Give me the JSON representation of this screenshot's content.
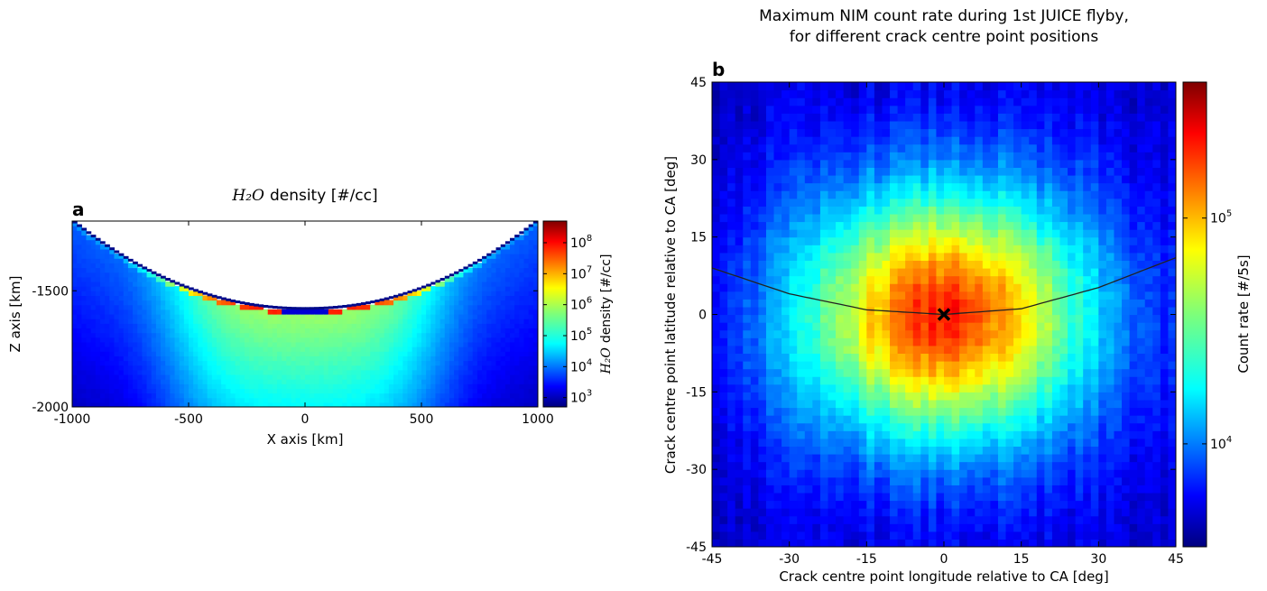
{
  "chart_data": [
    {
      "panel": "a",
      "type": "heatmap",
      "title_math": "H₂O",
      "title_rest": "density [#/cc]",
      "xlabel": "X axis [km]",
      "ylabel": "Z axis [km]",
      "xlim": [
        -1000,
        1000
      ],
      "ylim": [
        -2000,
        -1200
      ],
      "xticks": [
        "-1000",
        "-500",
        "0",
        "500",
        "1000"
      ],
      "xtick_values": [
        -1000,
        -500,
        0,
        500,
        1000
      ],
      "yticks": [
        "-1500",
        "-2000"
      ],
      "ytick_values": [
        -1500,
        -2000
      ],
      "surface": "moon surface, arc spanning x = -1000..1000 km, lowest z about -1580 km at x = 0",
      "plume_peak": "near x = 0, z = -1580 km, density above 10^7 #/cc",
      "colorbar": {
        "label_math": "H₂O",
        "label_rest": "density [#/cc]",
        "scale": "log",
        "range": [
          500,
          500000000
        ],
        "ticks": [
          {
            "base": "10",
            "exp": "3",
            "value": 1000
          },
          {
            "base": "10",
            "exp": "4",
            "value": 10000
          },
          {
            "base": "10",
            "exp": "5",
            "value": 100000
          },
          {
            "base": "10",
            "exp": "6",
            "value": 1000000
          },
          {
            "base": "10",
            "exp": "7",
            "value": 10000000
          },
          {
            "base": "10",
            "exp": "8",
            "value": 100000000
          }
        ]
      }
    },
    {
      "panel": "b",
      "type": "heatmap",
      "title": "Maximum NIM count rate during 1st JUICE flyby,",
      "title_line2": "for different crack centre point positions",
      "xlabel": "Crack centre point longitude relative to CA [deg]",
      "ylabel": "Crack centre point latitude relative to CA [deg]",
      "xlim": [
        -45,
        45
      ],
      "ylim": [
        -45,
        45
      ],
      "xticks": [
        "-45",
        "-30",
        "-15",
        "0",
        "15",
        "30",
        "45"
      ],
      "xtick_values": [
        -45,
        -30,
        -15,
        0,
        15,
        30,
        45
      ],
      "yticks": [
        "45",
        "30",
        "15",
        "0",
        "-15",
        "-30",
        "-45"
      ],
      "ytick_values": [
        45,
        30,
        15,
        0,
        -15,
        -30,
        -45
      ],
      "peak_count_rate": 200000,
      "peak_location": [
        0,
        0
      ],
      "marker": {
        "symbol": "x",
        "lon": 0,
        "lat": 0
      },
      "trajectory": {
        "lon": [
          -45,
          -30,
          -15,
          0,
          15,
          30,
          45
        ],
        "lat": [
          9,
          4,
          0.9,
          0,
          1.1,
          5.2,
          11
        ]
      },
      "colorbar": {
        "label": "Count rate [#/5s]",
        "scale": "log",
        "range": [
          3500,
          400000
        ],
        "ticks": [
          {
            "base": "10",
            "exp": "4",
            "value": 10000
          },
          {
            "base": "10",
            "exp": "5",
            "value": 100000
          }
        ]
      }
    }
  ],
  "panel_labels": {
    "a": "a",
    "b": "b"
  },
  "colors": {
    "jet_dark_blue": "#00007f",
    "jet_blue": "#0000ff",
    "jet_cyan": "#00ffff",
    "jet_yellow": "#ffff00",
    "jet_red": "#ff0000",
    "jet_dark_red": "#7f0000",
    "marker": "#000000"
  }
}
